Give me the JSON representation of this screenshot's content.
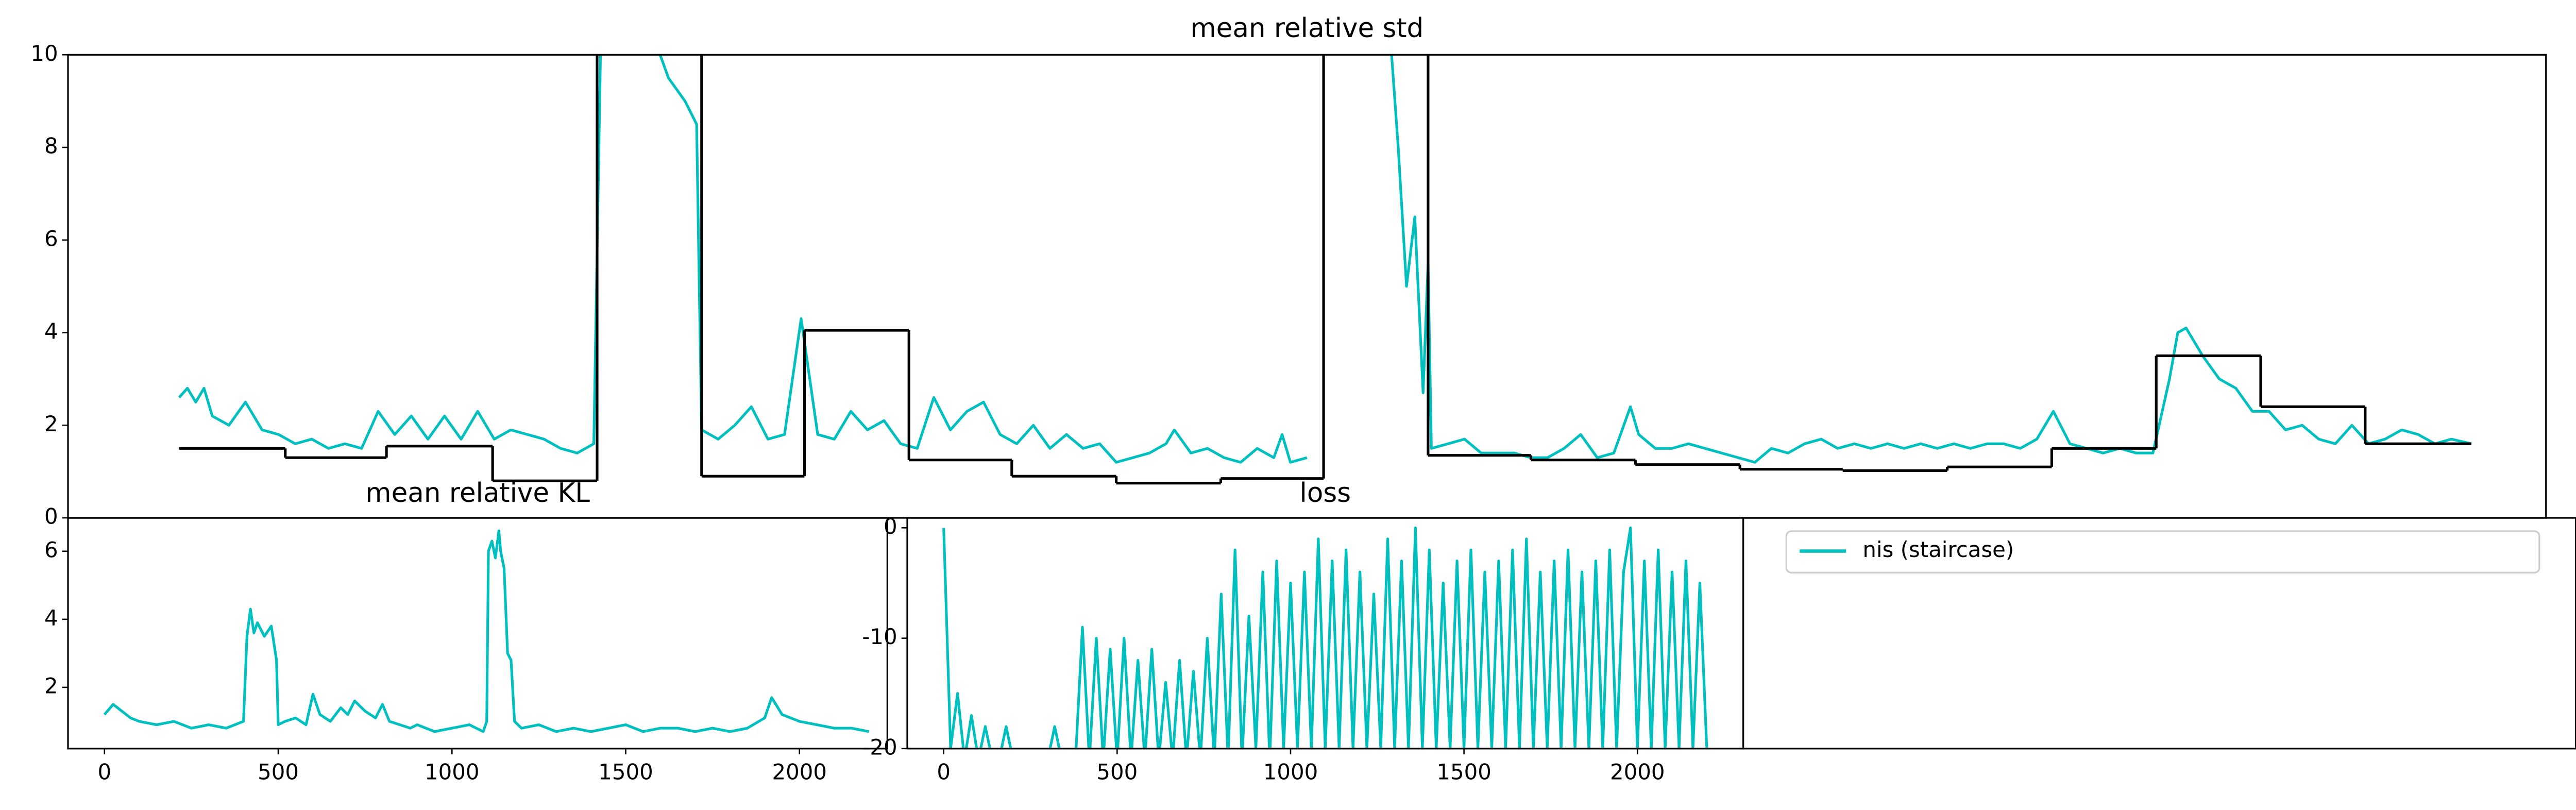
{
  "chart_data": [
    {
      "type": "line",
      "title": "mean relative std",
      "xlim": [
        -67,
        1427
      ],
      "ylim": [
        0,
        10
      ],
      "yticks": [
        0,
        2,
        4,
        6,
        8,
        10
      ],
      "series": [
        {
          "color": "#00bfbf",
          "x": [
            0,
            5,
            10,
            15,
            20,
            30,
            40,
            50,
            60,
            70,
            80,
            90,
            100,
            110,
            120,
            130,
            140,
            150,
            160,
            170,
            180,
            190,
            200,
            210,
            220,
            230,
            240,
            250,
            255,
            280,
            295,
            305,
            312,
            315,
            325,
            335,
            345,
            355,
            365,
            375,
            385,
            395,
            405,
            415,
            425,
            435,
            445,
            455,
            465,
            475,
            485,
            495,
            505,
            515,
            525,
            535,
            545,
            555,
            565,
            575,
            585,
            595,
            600,
            610,
            620,
            630,
            640,
            650,
            660,
            665,
            670,
            680,
            690,
            730,
            735,
            740,
            745,
            750,
            753,
            755,
            765,
            775,
            785,
            795,
            805,
            815,
            825,
            835,
            845,
            855,
            865,
            875,
            880,
            890,
            900,
            910,
            920,
            930,
            940,
            950,
            960,
            970,
            980,
            990,
            1000,
            1010,
            1020,
            1030,
            1040,
            1050,
            1060,
            1070,
            1080,
            1090,
            1100,
            1110,
            1120,
            1130,
            1140,
            1150,
            1160,
            1170,
            1180,
            1190,
            1200,
            1205,
            1210,
            1220,
            1230,
            1240,
            1250,
            1260,
            1270,
            1280,
            1290,
            1300,
            1310,
            1320,
            1330,
            1340,
            1350,
            1360,
            1370,
            1382
          ],
          "values": [
            2.6,
            2.8,
            2.5,
            2.8,
            2.2,
            2.0,
            2.5,
            1.9,
            1.8,
            1.6,
            1.7,
            1.5,
            1.6,
            1.5,
            2.3,
            1.8,
            2.2,
            1.7,
            2.2,
            1.7,
            2.3,
            1.7,
            1.9,
            1.8,
            1.7,
            1.5,
            1.4,
            1.6,
            12,
            11,
            9.5,
            9,
            8.5,
            1.9,
            1.7,
            2.0,
            2.4,
            1.7,
            1.8,
            4.3,
            1.8,
            1.7,
            2.3,
            1.9,
            2.1,
            1.6,
            1.5,
            2.6,
            1.9,
            2.3,
            2.5,
            1.8,
            1.6,
            2.0,
            1.5,
            1.8,
            1.5,
            1.6,
            1.2,
            1.3,
            1.4,
            1.6,
            1.9,
            1.4,
            1.5,
            1.3,
            1.2,
            1.5,
            1.3,
            1.8,
            1.2,
            1.3,
            null,
            10.5,
            8,
            5,
            6.5,
            2.7,
            5.5,
            1.5,
            1.6,
            1.7,
            1.4,
            1.4,
            1.4,
            1.3,
            1.3,
            1.5,
            1.8,
            1.3,
            1.4,
            2.4,
            1.8,
            1.5,
            1.5,
            1.6,
            1.5,
            1.4,
            1.3,
            1.2,
            1.5,
            1.4,
            1.6,
            1.7,
            1.5,
            1.6,
            1.5,
            1.6,
            1.5,
            1.6,
            1.5,
            1.6,
            1.5,
            1.6,
            1.6,
            1.5,
            1.7,
            2.3,
            1.6,
            1.5,
            1.4,
            1.5,
            1.4,
            1.4,
            3.0,
            4.0,
            4.1,
            3.5,
            3.0,
            2.8,
            2.3,
            2.3,
            1.9,
            2.0,
            1.7,
            1.6,
            2.0,
            1.6,
            1.7,
            1.9,
            1.8,
            1.6,
            1.7,
            1.6
          ]
        },
        {
          "color": "#000000",
          "drawstyle": "steps",
          "bins": [
            0,
            64,
            125,
            189,
            252,
            315,
            377,
            440,
            502,
            565,
            628,
            690,
            753,
            815,
            878,
            941,
            1003,
            1066,
            1129,
            1192,
            1255,
            1318,
            1382
          ],
          "values": [
            1.5,
            1.3,
            1.55,
            0.8,
            12,
            0.9,
            4.05,
            1.25,
            0.9,
            0.75,
            0.85,
            12,
            1.35,
            1.25,
            1.15,
            1.05,
            1.02,
            1.1,
            1.5,
            3.5,
            2.4,
            1.6
          ]
        }
      ]
    },
    {
      "type": "line",
      "title": "mean relative KL",
      "xlim": [
        -105,
        2253
      ],
      "ylim": [
        0.2,
        6.98
      ],
      "yticks": [
        2,
        4,
        6
      ],
      "xticks": [
        0,
        500,
        1000,
        1500,
        2000
      ],
      "series": [
        {
          "color": "#00bfbf",
          "x": [
            0,
            25,
            50,
            75,
            100,
            150,
            200,
            250,
            300,
            350,
            400,
            410,
            420,
            430,
            440,
            460,
            480,
            495,
            500,
            520,
            550,
            580,
            600,
            620,
            650,
            680,
            700,
            720,
            750,
            780,
            800,
            820,
            850,
            880,
            900,
            950,
            1000,
            1050,
            1090,
            1100,
            1105,
            1115,
            1125,
            1135,
            1140,
            1150,
            1160,
            1170,
            1180,
            1200,
            1250,
            1300,
            1350,
            1400,
            1450,
            1500,
            1550,
            1600,
            1650,
            1700,
            1750,
            1800,
            1850,
            1900,
            1920,
            1950,
            2000,
            2050,
            2100,
            2150,
            2200
          ],
          "values": [
            1.2,
            1.5,
            1.3,
            1.1,
            1.0,
            0.9,
            1.0,
            0.8,
            0.9,
            0.8,
            1.0,
            3.5,
            4.3,
            3.6,
            3.9,
            3.5,
            3.8,
            2.8,
            0.9,
            1.0,
            1.1,
            0.9,
            1.8,
            1.2,
            1.0,
            1.4,
            1.2,
            1.6,
            1.3,
            1.1,
            1.5,
            1.0,
            0.9,
            0.8,
            0.9,
            0.7,
            0.8,
            0.9,
            0.7,
            1.0,
            6.0,
            6.3,
            5.8,
            6.6,
            6.0,
            5.5,
            3.0,
            2.8,
            1.0,
            0.8,
            0.9,
            0.7,
            0.8,
            0.7,
            0.8,
            0.9,
            0.7,
            0.8,
            0.8,
            0.7,
            0.8,
            0.7,
            0.8,
            1.1,
            1.7,
            1.2,
            1.0,
            0.9,
            0.8,
            0.8,
            0.7
          ]
        }
      ]
    },
    {
      "type": "line",
      "title": "loss",
      "xlim": [
        -105,
        2305
      ],
      "ylim": [
        -20,
        0.9
      ],
      "yticks": [
        0,
        -10,
        -20
      ],
      "xticks": [
        0,
        500,
        1000,
        1500,
        2000
      ],
      "series": [
        {
          "color": "#00bfbf",
          "x": [
            0,
            20,
            40,
            60,
            80,
            100,
            120,
            140,
            160,
            180,
            200,
            220,
            240,
            260,
            280,
            300,
            320,
            340,
            360,
            380,
            400,
            420,
            440,
            460,
            480,
            500,
            520,
            540,
            560,
            580,
            600,
            620,
            640,
            660,
            680,
            700,
            720,
            740,
            760,
            780,
            800,
            820,
            840,
            860,
            880,
            900,
            920,
            940,
            960,
            980,
            1000,
            1020,
            1040,
            1060,
            1080,
            1100,
            1120,
            1140,
            1160,
            1180,
            1200,
            1220,
            1240,
            1260,
            1280,
            1300,
            1320,
            1340,
            1360,
            1380,
            1400,
            1420,
            1440,
            1460,
            1480,
            1500,
            1520,
            1540,
            1560,
            1580,
            1600,
            1620,
            1640,
            1660,
            1680,
            1700,
            1720,
            1740,
            1760,
            1780,
            1800,
            1820,
            1840,
            1860,
            1880,
            1900,
            1920,
            1940,
            1960,
            1980,
            2000,
            2020,
            2040,
            2060,
            2080,
            2100,
            2120,
            2140,
            2160,
            2180,
            2200
          ],
          "values": [
            0,
            -20,
            -15,
            -21,
            -17,
            -21,
            -18,
            -21,
            -21,
            -18,
            -21,
            -21,
            -21,
            -21,
            -21,
            -21,
            -18,
            -21,
            -21,
            -21,
            -9,
            -21,
            -10,
            -21,
            -11,
            -21,
            -10,
            -21,
            -12,
            -21,
            -11,
            -21,
            -14,
            -21,
            -12,
            -21,
            -13,
            -21,
            -10,
            -21,
            -6,
            -21,
            -2,
            -21,
            -8,
            -20,
            -4,
            -21,
            -3,
            -20,
            -5,
            -20,
            -4,
            -20,
            -1,
            -20,
            -3,
            -20,
            -2,
            -20,
            -4,
            -20,
            -6,
            -20,
            -1,
            -20,
            -3,
            -20,
            0,
            -20,
            -2,
            -20,
            -5,
            -20,
            -3,
            -20,
            -2,
            -20,
            -4,
            -20,
            -3,
            -20,
            -2,
            -20,
            -1,
            -20,
            -4,
            -20,
            -3,
            -20,
            -2,
            -20,
            -4,
            -20,
            -3,
            -20,
            -2,
            -20,
            -4,
            0,
            -20,
            -3,
            -20,
            -2,
            -20,
            -4,
            -20,
            -3,
            -20,
            -5,
            -20
          ]
        }
      ]
    },
    {
      "type": "legend",
      "series": [
        {
          "name": "nis (staircase)",
          "color": "#00bfbf"
        }
      ]
    }
  ]
}
